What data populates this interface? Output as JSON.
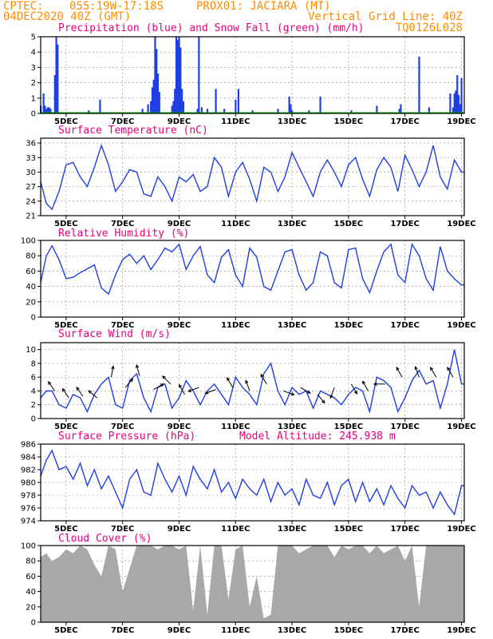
{
  "header": {
    "line1_left": "CPTEC:",
    "line1_coords": "055:19W-17:18S",
    "line1_station": "PROX01: JACIARA (MT)",
    "line2_left": "04DEC2020 40Z (GMT)",
    "line2_right": "Vertical Grid Line: 40Z",
    "line3_right": "TQ0126L028"
  },
  "colors": {
    "header": "#ff8c00",
    "title": "#e8007a",
    "line": "#1f3fe0",
    "precip_bar": "#1f3fe0",
    "snow_line": "#00b000",
    "wind_arrow": "#000000",
    "cloud_fill": "#a8a8a8"
  },
  "x_axis": {
    "labels": [
      "5DEC",
      "7DEC",
      "9DEC",
      "11DEC",
      "13DEC",
      "15DEC",
      "17DEC",
      "19DEC"
    ],
    "days": [
      5,
      7,
      9,
      11,
      13,
      15,
      17,
      19
    ],
    "start_day": 4.1,
    "end_day": 19.1
  },
  "chart_data": [
    {
      "type": "bar",
      "title": "Precipitation (blue) and Snow Fall (green) (mm/h)",
      "ylim": [
        0,
        5
      ],
      "yticks": [
        0,
        1,
        2,
        3,
        4,
        5
      ],
      "grid": true,
      "series": [
        {
          "name": "Precipitation",
          "x": [
            4.1,
            4.2,
            4.25,
            4.3,
            4.35,
            4.4,
            4.45,
            4.6,
            4.65,
            4.7,
            5.8,
            6.2,
            7.7,
            7.9,
            8.0,
            8.05,
            8.1,
            8.15,
            8.2,
            8.25,
            8.3,
            8.75,
            8.8,
            8.85,
            8.9,
            8.95,
            9.0,
            9.05,
            9.1,
            9.15,
            9.65,
            9.7,
            9.8,
            10.0,
            10.3,
            10.6,
            11.0,
            11.1,
            11.6,
            12.5,
            12.9,
            12.95,
            13.0,
            13.6,
            14.0,
            15.1,
            16.0,
            16.8,
            16.85,
            17.5,
            17.85,
            18.6,
            18.7,
            18.75,
            18.8,
            18.85,
            18.9,
            18.95,
            19.0
          ],
          "values": [
            0.5,
            1.3,
            0.5,
            0.3,
            0.4,
            0.4,
            0.3,
            2.5,
            5.0,
            4.5,
            0.2,
            0.9,
            0.3,
            0.6,
            0.8,
            1.7,
            2.2,
            5.0,
            4.2,
            2.6,
            1.4,
            0.5,
            0.8,
            1.6,
            5.0,
            4.8,
            5.0,
            4.3,
            1.6,
            0.8,
            0.3,
            5.0,
            0.4,
            0.3,
            1.6,
            0.3,
            0.9,
            1.6,
            0.2,
            0.3,
            1.1,
            0.6,
            0.2,
            0.2,
            1.1,
            0.2,
            0.5,
            0.3,
            0.6,
            3.7,
            0.4,
            1.3,
            0.4,
            1.3,
            1.5,
            2.5,
            1.2,
            0.6,
            2.3
          ]
        },
        {
          "name": "Snow Fall",
          "x": [
            4.1,
            19.1
          ],
          "values": [
            0,
            0
          ]
        }
      ]
    },
    {
      "type": "line",
      "title": "Surface Temperature (nC)",
      "ylim": [
        21,
        37
      ],
      "yticks": [
        21,
        24,
        27,
        30,
        33,
        36
      ],
      "grid": true,
      "x": [
        4.1,
        4.3,
        4.5,
        4.75,
        5.0,
        5.25,
        5.5,
        5.75,
        6.0,
        6.25,
        6.5,
        6.75,
        7.0,
        7.25,
        7.5,
        7.75,
        8.0,
        8.25,
        8.5,
        8.75,
        9.0,
        9.25,
        9.5,
        9.75,
        10.0,
        10.25,
        10.5,
        10.75,
        11.0,
        11.25,
        11.5,
        11.75,
        12.0,
        12.25,
        12.5,
        12.75,
        13.0,
        13.25,
        13.5,
        13.75,
        14.0,
        14.25,
        14.5,
        14.75,
        15.0,
        15.25,
        15.5,
        15.75,
        16.0,
        16.25,
        16.5,
        16.75,
        17.0,
        17.25,
        17.5,
        17.75,
        18.0,
        18.25,
        18.5,
        18.75,
        19.0,
        19.1
      ],
      "values": [
        28.0,
        23.5,
        22.3,
        26.0,
        31.5,
        32.0,
        29.0,
        27.0,
        31.0,
        35.5,
        31.5,
        26.0,
        28.0,
        30.5,
        30.0,
        25.5,
        25.0,
        29.0,
        27.0,
        24.0,
        29.0,
        28.0,
        29.5,
        26.0,
        27.0,
        33.0,
        31.0,
        25.0,
        30.0,
        32.0,
        28.5,
        24.0,
        31.0,
        30.0,
        26.0,
        29.0,
        34.0,
        31.0,
        28.0,
        25.0,
        30.0,
        32.5,
        30.0,
        27.0,
        31.5,
        33.0,
        28.5,
        25.0,
        30.5,
        33.0,
        31.0,
        26.0,
        33.5,
        30.5,
        27.0,
        30.0,
        35.5,
        29.0,
        26.5,
        32.5,
        30.0,
        30.0
      ]
    },
    {
      "type": "line",
      "title": "Relative Humidity (%)",
      "ylim": [
        0,
        100
      ],
      "yticks": [
        0,
        20,
        40,
        60,
        80,
        100
      ],
      "grid": true,
      "x": [
        4.1,
        4.3,
        4.5,
        4.75,
        5.0,
        5.25,
        5.5,
        5.75,
        6.0,
        6.25,
        6.5,
        6.75,
        7.0,
        7.25,
        7.5,
        7.75,
        8.0,
        8.25,
        8.5,
        8.75,
        9.0,
        9.25,
        9.5,
        9.75,
        10.0,
        10.25,
        10.5,
        10.75,
        11.0,
        11.25,
        11.5,
        11.75,
        12.0,
        12.25,
        12.5,
        12.75,
        13.0,
        13.25,
        13.5,
        13.75,
        14.0,
        14.25,
        14.5,
        14.75,
        15.0,
        15.25,
        15.5,
        15.75,
        16.0,
        16.25,
        16.5,
        16.75,
        17.0,
        17.25,
        17.5,
        17.75,
        18.0,
        18.25,
        18.5,
        18.75,
        19.0,
        19.1
      ],
      "values": [
        45,
        80,
        93,
        75,
        50,
        52,
        58,
        63,
        68,
        38,
        30,
        55,
        75,
        82,
        70,
        80,
        62,
        75,
        90,
        85,
        95,
        62,
        80,
        92,
        55,
        45,
        78,
        88,
        55,
        40,
        90,
        78,
        40,
        35,
        60,
        85,
        88,
        55,
        35,
        45,
        85,
        80,
        45,
        38,
        88,
        90,
        50,
        32,
        60,
        85,
        95,
        55,
        45,
        95,
        80,
        50,
        35,
        92,
        60,
        50,
        42,
        42
      ]
    },
    {
      "type": "line",
      "title": "Surface Wind (m/s)",
      "ylim": [
        0,
        11
      ],
      "yticks": [
        0,
        2,
        4,
        6,
        8,
        10
      ],
      "grid": true,
      "x": [
        4.1,
        4.3,
        4.5,
        4.75,
        5.0,
        5.25,
        5.5,
        5.75,
        6.0,
        6.25,
        6.5,
        6.75,
        7.0,
        7.25,
        7.5,
        7.75,
        8.0,
        8.25,
        8.5,
        8.75,
        9.0,
        9.25,
        9.5,
        9.75,
        10.0,
        10.25,
        10.5,
        10.75,
        11.0,
        11.25,
        11.5,
        11.75,
        12.0,
        12.25,
        12.5,
        12.75,
        13.0,
        13.25,
        13.5,
        13.75,
        14.0,
        14.25,
        14.5,
        14.75,
        15.0,
        15.25,
        15.5,
        15.75,
        16.0,
        16.25,
        16.5,
        16.75,
        17.0,
        17.25,
        17.5,
        17.75,
        18.0,
        18.25,
        18.5,
        18.75,
        19.0,
        19.1
      ],
      "values": [
        3.0,
        4.0,
        4.0,
        2.0,
        1.5,
        3.5,
        3.0,
        1.0,
        3.5,
        5.0,
        6.0,
        2.0,
        1.5,
        5.5,
        6.5,
        3.0,
        1.0,
        4.5,
        5.0,
        1.5,
        3.0,
        5.5,
        4.0,
        2.0,
        4.0,
        5.0,
        3.5,
        2.0,
        6.0,
        4.5,
        3.5,
        2.0,
        6.5,
        8.0,
        4.0,
        2.0,
        4.5,
        3.5,
        4.0,
        1.5,
        4.0,
        3.5,
        3.0,
        2.0,
        3.5,
        4.5,
        4.0,
        1.0,
        6.0,
        5.5,
        4.5,
        1.0,
        3.0,
        5.5,
        7.0,
        5.0,
        5.5,
        1.5,
        5.0,
        10.0,
        5.0,
        5.0
      ],
      "arrows": [
        {
          "x": 4.6,
          "speed": 4.0,
          "angle": -125
        },
        {
          "x": 5.1,
          "speed": 3.0,
          "angle": -125
        },
        {
          "x": 5.6,
          "speed": 3.2,
          "angle": -125
        },
        {
          "x": 6.1,
          "speed": 3.0,
          "angle": -140
        },
        {
          "x": 6.6,
          "speed": 6.0,
          "angle": -80
        },
        {
          "x": 7.1,
          "speed": 4.5,
          "angle": -50
        },
        {
          "x": 7.6,
          "speed": 6.2,
          "angle": -105
        },
        {
          "x": 8.1,
          "speed": 4.2,
          "angle": -30
        },
        {
          "x": 8.7,
          "speed": 5.0,
          "angle": -135
        },
        {
          "x": 9.2,
          "speed": 3.5,
          "angle": -120
        },
        {
          "x": 9.7,
          "speed": 4.5,
          "angle": 160
        },
        {
          "x": 10.3,
          "speed": 4.2,
          "angle": 160
        },
        {
          "x": 10.9,
          "speed": 4.5,
          "angle": -120
        },
        {
          "x": 11.5,
          "speed": 4.0,
          "angle": -110
        },
        {
          "x": 12.1,
          "speed": 5.0,
          "angle": -120
        },
        {
          "x": 12.7,
          "speed": 4.0,
          "angle": 20
        },
        {
          "x": 13.3,
          "speed": 4.5,
          "angle": 30
        },
        {
          "x": 13.9,
          "speed": 3.5,
          "angle": 50
        },
        {
          "x": 14.5,
          "speed": 4.5,
          "angle": 110
        },
        {
          "x": 15.1,
          "speed": 5.0,
          "angle": 60
        },
        {
          "x": 15.7,
          "speed": 4.0,
          "angle": -120
        },
        {
          "x": 16.3,
          "speed": 5.0,
          "angle": 180
        },
        {
          "x": 16.9,
          "speed": 6.0,
          "angle": -120
        },
        {
          "x": 17.5,
          "speed": 6.0,
          "angle": -110
        },
        {
          "x": 18.1,
          "speed": 6.0,
          "angle": -120
        },
        {
          "x": 18.7,
          "speed": 6.0,
          "angle": -120
        }
      ]
    },
    {
      "type": "line",
      "title": "Surface Pressure (hPa)",
      "annotation": "Model Altitude: 245.938 m",
      "ylim": [
        974,
        986
      ],
      "yticks": [
        974,
        976,
        978,
        980,
        982,
        984,
        986
      ],
      "grid": true,
      "x": [
        4.1,
        4.3,
        4.5,
        4.75,
        5.0,
        5.25,
        5.5,
        5.75,
        6.0,
        6.25,
        6.5,
        6.75,
        7.0,
        7.25,
        7.5,
        7.75,
        8.0,
        8.25,
        8.5,
        8.75,
        9.0,
        9.25,
        9.5,
        9.75,
        10.0,
        10.25,
        10.5,
        10.75,
        11.0,
        11.25,
        11.5,
        11.75,
        12.0,
        12.25,
        12.5,
        12.75,
        13.0,
        13.25,
        13.5,
        13.75,
        14.0,
        14.25,
        14.5,
        14.75,
        15.0,
        15.25,
        15.5,
        15.75,
        16.0,
        16.25,
        16.5,
        16.75,
        17.0,
        17.25,
        17.5,
        17.75,
        18.0,
        18.25,
        18.5,
        18.75,
        19.0,
        19.1
      ],
      "values": [
        981.0,
        983.5,
        985.0,
        982.0,
        982.5,
        980.5,
        983.0,
        979.5,
        982.0,
        979.0,
        981.0,
        978.5,
        976.0,
        980.5,
        982.0,
        978.5,
        978.0,
        983.0,
        980.5,
        978.5,
        981.0,
        978.0,
        982.5,
        980.5,
        979.0,
        982.0,
        978.5,
        980.0,
        977.5,
        980.5,
        979.0,
        978.0,
        980.5,
        977.0,
        980.0,
        978.0,
        979.0,
        976.5,
        980.5,
        978.0,
        977.5,
        980.0,
        976.5,
        979.5,
        980.5,
        977.0,
        980.0,
        977.0,
        979.0,
        976.5,
        979.5,
        977.5,
        976.0,
        979.5,
        978.0,
        978.5,
        976.0,
        978.5,
        976.5,
        975.0,
        979.5,
        979.5
      ]
    },
    {
      "type": "area",
      "title": "Cloud Cover (%)",
      "ylim": [
        0,
        100
      ],
      "yticks": [
        0,
        20,
        40,
        60,
        80,
        100
      ],
      "grid": true,
      "x": [
        4.1,
        4.3,
        4.5,
        4.75,
        5.0,
        5.25,
        5.5,
        5.75,
        6.0,
        6.25,
        6.5,
        6.75,
        7.0,
        7.25,
        7.5,
        7.75,
        8.0,
        8.25,
        8.5,
        8.75,
        9.0,
        9.25,
        9.5,
        9.75,
        10.0,
        10.25,
        10.5,
        10.75,
        11.0,
        11.25,
        11.5,
        11.75,
        12.0,
        12.25,
        12.5,
        12.75,
        13.0,
        13.25,
        13.5,
        13.75,
        14.0,
        14.25,
        14.5,
        14.75,
        15.0,
        15.25,
        15.5,
        15.75,
        16.0,
        16.25,
        16.5,
        16.75,
        17.0,
        17.25,
        17.5,
        17.75,
        18.0,
        18.25,
        18.5,
        18.75,
        19.0,
        19.1
      ],
      "values": [
        85,
        90,
        80,
        85,
        95,
        90,
        100,
        95,
        75,
        60,
        100,
        95,
        40,
        70,
        100,
        100,
        100,
        95,
        100,
        100,
        95,
        100,
        15,
        100,
        10,
        100,
        100,
        30,
        95,
        100,
        20,
        60,
        5,
        10,
        100,
        100,
        100,
        90,
        95,
        100,
        100,
        100,
        85,
        100,
        95,
        100,
        100,
        90,
        100,
        90,
        95,
        100,
        80,
        100,
        20,
        100,
        100,
        100,
        100,
        100,
        100,
        100
      ]
    }
  ]
}
